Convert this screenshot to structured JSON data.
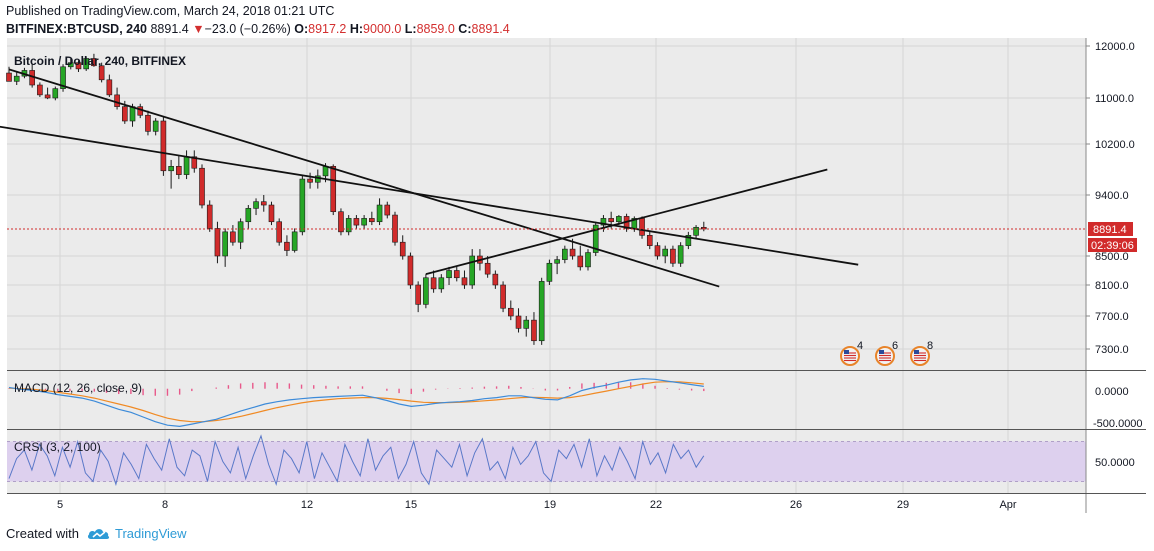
{
  "header": {
    "published": "Published on TradingView.com, March 24, 2018 01:21 UTC",
    "symbol": "BITFINEX:BTCUSD, 240",
    "last": "8891.4",
    "change": "−23.0 (−0.26%)",
    "open_label": "O:",
    "open": "8917.2",
    "high_label": "H:",
    "high": "9000.0",
    "low_label": "L:",
    "low": "8859.0",
    "close_label": "C:",
    "close": "8891.4"
  },
  "footer": {
    "created_with": "Created with",
    "brand": "TradingView"
  },
  "colors": {
    "up": "#26a626",
    "down": "#d12b2b",
    "pane_bg": "#ebebeb",
    "macd": "#3d8bd9",
    "signal": "#f08a24",
    "hist": "#e8588a",
    "crsi": "#5a78c8",
    "crsi_band": "#ddd0ee",
    "price_badge": "#d12b2b"
  },
  "chart_data": {
    "type": "candlestick",
    "title": "Bitcoin / Dollar, 240, BITFINEX",
    "price_axis": {
      "ticks": [
        "12000.0",
        "11000.0",
        "10200.0",
        "9400.0",
        "8500.0",
        "8100.0",
        "7700.0",
        "7300.0"
      ],
      "current_price": "8891.4",
      "countdown": "02:39:06"
    },
    "x_axis": {
      "ticks": [
        "5",
        "8",
        "12",
        "15",
        "19",
        "22",
        "26",
        "29",
        "Apr"
      ]
    },
    "candles": [
      [
        11480,
        11600,
        11350,
        11320
      ],
      [
        11320,
        11500,
        11250,
        11420
      ],
      [
        11420,
        11580,
        11380,
        11530
      ],
      [
        11530,
        11650,
        11200,
        11250
      ],
      [
        11250,
        11300,
        11020,
        11060
      ],
      [
        11060,
        11200,
        10980,
        11000
      ],
      [
        11000,
        11220,
        10960,
        11180
      ],
      [
        11180,
        11650,
        11120,
        11600
      ],
      [
        11600,
        11750,
        11550,
        11680
      ],
      [
        11680,
        11720,
        11500,
        11560
      ],
      [
        11560,
        11800,
        11520,
        11760
      ],
      [
        11760,
        11850,
        11600,
        11620
      ],
      [
        11620,
        11680,
        11300,
        11350
      ],
      [
        11350,
        11450,
        11020,
        11060
      ],
      [
        11060,
        11200,
        10800,
        10850
      ],
      [
        10850,
        10950,
        10550,
        10600
      ],
      [
        10600,
        10900,
        10500,
        10850
      ],
      [
        10850,
        10900,
        10650,
        10700
      ],
      [
        10700,
        10780,
        10350,
        10420
      ],
      [
        10420,
        10650,
        10350,
        10600
      ],
      [
        10600,
        10680,
        9700,
        9780
      ],
      [
        9780,
        9950,
        9500,
        9850
      ],
      [
        9850,
        10020,
        9650,
        9720
      ],
      [
        9720,
        10100,
        9650,
        10000
      ],
      [
        10000,
        10100,
        9750,
        9820
      ],
      [
        9820,
        9880,
        9200,
        9250
      ],
      [
        9250,
        9320,
        8850,
        8900
      ],
      [
        8900,
        9000,
        8400,
        8500
      ],
      [
        8500,
        8900,
        8350,
        8850
      ],
      [
        8850,
        8950,
        8650,
        8700
      ],
      [
        8700,
        9050,
        8600,
        9000
      ],
      [
        9000,
        9250,
        8900,
        9200
      ],
      [
        9200,
        9350,
        9100,
        9300
      ],
      [
        9300,
        9400,
        9150,
        9250
      ],
      [
        9250,
        9300,
        8950,
        9000
      ],
      [
        9000,
        9050,
        8650,
        8700
      ],
      [
        8700,
        8800,
        8500,
        8580
      ],
      [
        8580,
        8900,
        8550,
        8850
      ],
      [
        8850,
        9700,
        8800,
        9650
      ],
      [
        9650,
        9750,
        9500,
        9600
      ],
      [
        9600,
        9800,
        9500,
        9700
      ],
      [
        9700,
        9900,
        9600,
        9850
      ],
      [
        9850,
        9880,
        9100,
        9150
      ],
      [
        9150,
        9200,
        8800,
        8850
      ],
      [
        8850,
        9100,
        8800,
        9050
      ],
      [
        9050,
        9100,
        8900,
        8950
      ],
      [
        8950,
        9100,
        8900,
        9050
      ],
      [
        9050,
        9150,
        8950,
        9000
      ],
      [
        9000,
        9350,
        8950,
        9250
      ],
      [
        9250,
        9300,
        9050,
        9100
      ],
      [
        9100,
        9150,
        8650,
        8700
      ],
      [
        8700,
        8800,
        8450,
        8500
      ],
      [
        8500,
        8550,
        8050,
        8100
      ],
      [
        8100,
        8150,
        7750,
        7850
      ],
      [
        7850,
        8250,
        7800,
        8200
      ],
      [
        8200,
        8300,
        8000,
        8050
      ],
      [
        8050,
        8250,
        8000,
        8200
      ],
      [
        8200,
        8350,
        8100,
        8300
      ],
      [
        8300,
        8350,
        8150,
        8200
      ],
      [
        8200,
        8300,
        8050,
        8100
      ],
      [
        8100,
        8600,
        8050,
        8500
      ],
      [
        8500,
        8600,
        8300,
        8400
      ],
      [
        8400,
        8500,
        8200,
        8250
      ],
      [
        8250,
        8300,
        8050,
        8100
      ],
      [
        8100,
        8150,
        7750,
        7800
      ],
      [
        7800,
        7900,
        7650,
        7700
      ],
      [
        7700,
        7800,
        7500,
        7550
      ],
      [
        7550,
        7700,
        7450,
        7650
      ],
      [
        7650,
        7750,
        7350,
        7400
      ],
      [
        7400,
        8200,
        7350,
        8150
      ],
      [
        8150,
        8450,
        8100,
        8400
      ],
      [
        8400,
        8500,
        8250,
        8450
      ],
      [
        8450,
        8650,
        8400,
        8600
      ],
      [
        8600,
        8750,
        8450,
        8500
      ],
      [
        8500,
        8650,
        8300,
        8350
      ],
      [
        8350,
        8600,
        8300,
        8550
      ],
      [
        8550,
        9000,
        8500,
        8950
      ],
      [
        8950,
        9100,
        8850,
        9050
      ],
      [
        9050,
        9150,
        8900,
        9000
      ],
      [
        9000,
        9100,
        8950,
        9080
      ],
      [
        9080,
        9120,
        8850,
        8900
      ],
      [
        8900,
        9080,
        8850,
        9050
      ],
      [
        9050,
        9080,
        8750,
        8800
      ],
      [
        8800,
        8850,
        8600,
        8650
      ],
      [
        8650,
        8700,
        8450,
        8500
      ],
      [
        8500,
        8650,
        8400,
        8600
      ],
      [
        8600,
        8650,
        8350,
        8400
      ],
      [
        8400,
        8700,
        8350,
        8650
      ],
      [
        8650,
        8850,
        8600,
        8800
      ],
      [
        8800,
        8950,
        8750,
        8917
      ],
      [
        8917,
        9000,
        8859,
        8891.4
      ]
    ],
    "trendlines": [
      {
        "name": "falling-resistance-upper",
        "from": [
          0,
          11550
        ],
        "to": [
          92,
          8080
        ]
      },
      {
        "name": "falling-resistance-lower",
        "from": [
          -22,
          10950
        ],
        "to": [
          110,
          8380
        ]
      },
      {
        "name": "rising-support",
        "from": [
          54,
          8250
        ],
        "to": [
          106,
          9800
        ]
      }
    ],
    "indicators": {
      "macd": {
        "label": "MACD (12, 26, close, 9)",
        "ticks": [
          "0.0000",
          "-500.0000"
        ],
        "range": [
          -650,
          250
        ],
        "macd": [
          20,
          -10,
          -30,
          -60,
          -100,
          -130,
          -160,
          -210,
          -280,
          -350,
          -400,
          -480,
          -560,
          -620,
          -640,
          -600,
          -560,
          -520,
          -450,
          -380,
          -320,
          -260,
          -220,
          -190,
          -170,
          -150,
          -140,
          -130,
          -120,
          -110,
          -150,
          -200,
          -260,
          -300,
          -280,
          -250,
          -230,
          -220,
          -200,
          -170,
          -150,
          -120,
          -120,
          -150,
          -180,
          -190,
          -120,
          -30,
          20,
          60,
          110,
          150,
          170,
          160,
          130,
          100,
          70,
          40
        ],
        "signal": [
          10,
          0,
          -10,
          -30,
          -60,
          -90,
          -120,
          -160,
          -210,
          -260,
          -310,
          -370,
          -440,
          -500,
          -540,
          -560,
          -560,
          -540,
          -510,
          -470,
          -420,
          -370,
          -320,
          -280,
          -240,
          -210,
          -190,
          -170,
          -160,
          -150,
          -150,
          -165,
          -185,
          -210,
          -230,
          -235,
          -235,
          -230,
          -220,
          -205,
          -190,
          -170,
          -150,
          -145,
          -150,
          -160,
          -150,
          -120,
          -80,
          -40,
          0,
          40,
          80,
          110,
          120,
          115,
          100,
          80
        ],
        "hist": [
          10,
          -10,
          -20,
          -30,
          -40,
          -40,
          -40,
          -50,
          -70,
          -90,
          -90,
          -110,
          -120,
          -120,
          -100,
          -40,
          0,
          20,
          60,
          90,
          100,
          110,
          100,
          90,
          70,
          60,
          50,
          40,
          40,
          40,
          0,
          -35,
          -75,
          -90,
          -50,
          -15,
          5,
          10,
          20,
          35,
          40,
          50,
          30,
          -5,
          -30,
          -30,
          30,
          90,
          100,
          100,
          110,
          110,
          90,
          50,
          10,
          -15,
          -30,
          -40
        ]
      },
      "crsi": {
        "label": "CRSI (3, 2, 100)",
        "ticks": [
          "50.0000"
        ],
        "range": [
          0,
          100
        ],
        "values": [
          20,
          55,
          70,
          35,
          80,
          60,
          25,
          75,
          40,
          85,
          30,
          15,
          70,
          50,
          10,
          65,
          45,
          20,
          80,
          55,
          35,
          90,
          40,
          25,
          70,
          60,
          15,
          85,
          50,
          30,
          75,
          20,
          60,
          95,
          45,
          10,
          70,
          55,
          30,
          85,
          20,
          65,
          40,
          15,
          80,
          50,
          25,
          90,
          35,
          60,
          75,
          20,
          45,
          85,
          30,
          10,
          70,
          55,
          40,
          80,
          25,
          65,
          90,
          35,
          50,
          20,
          75,
          45,
          60,
          85,
          30,
          15,
          70,
          55,
          80,
          40,
          90,
          25,
          60,
          35,
          75,
          50,
          20,
          85,
          45,
          65,
          30,
          80,
          55,
          70,
          40,
          60
        ]
      }
    },
    "event_badges": [
      "4",
      "6",
      "8"
    ]
  }
}
